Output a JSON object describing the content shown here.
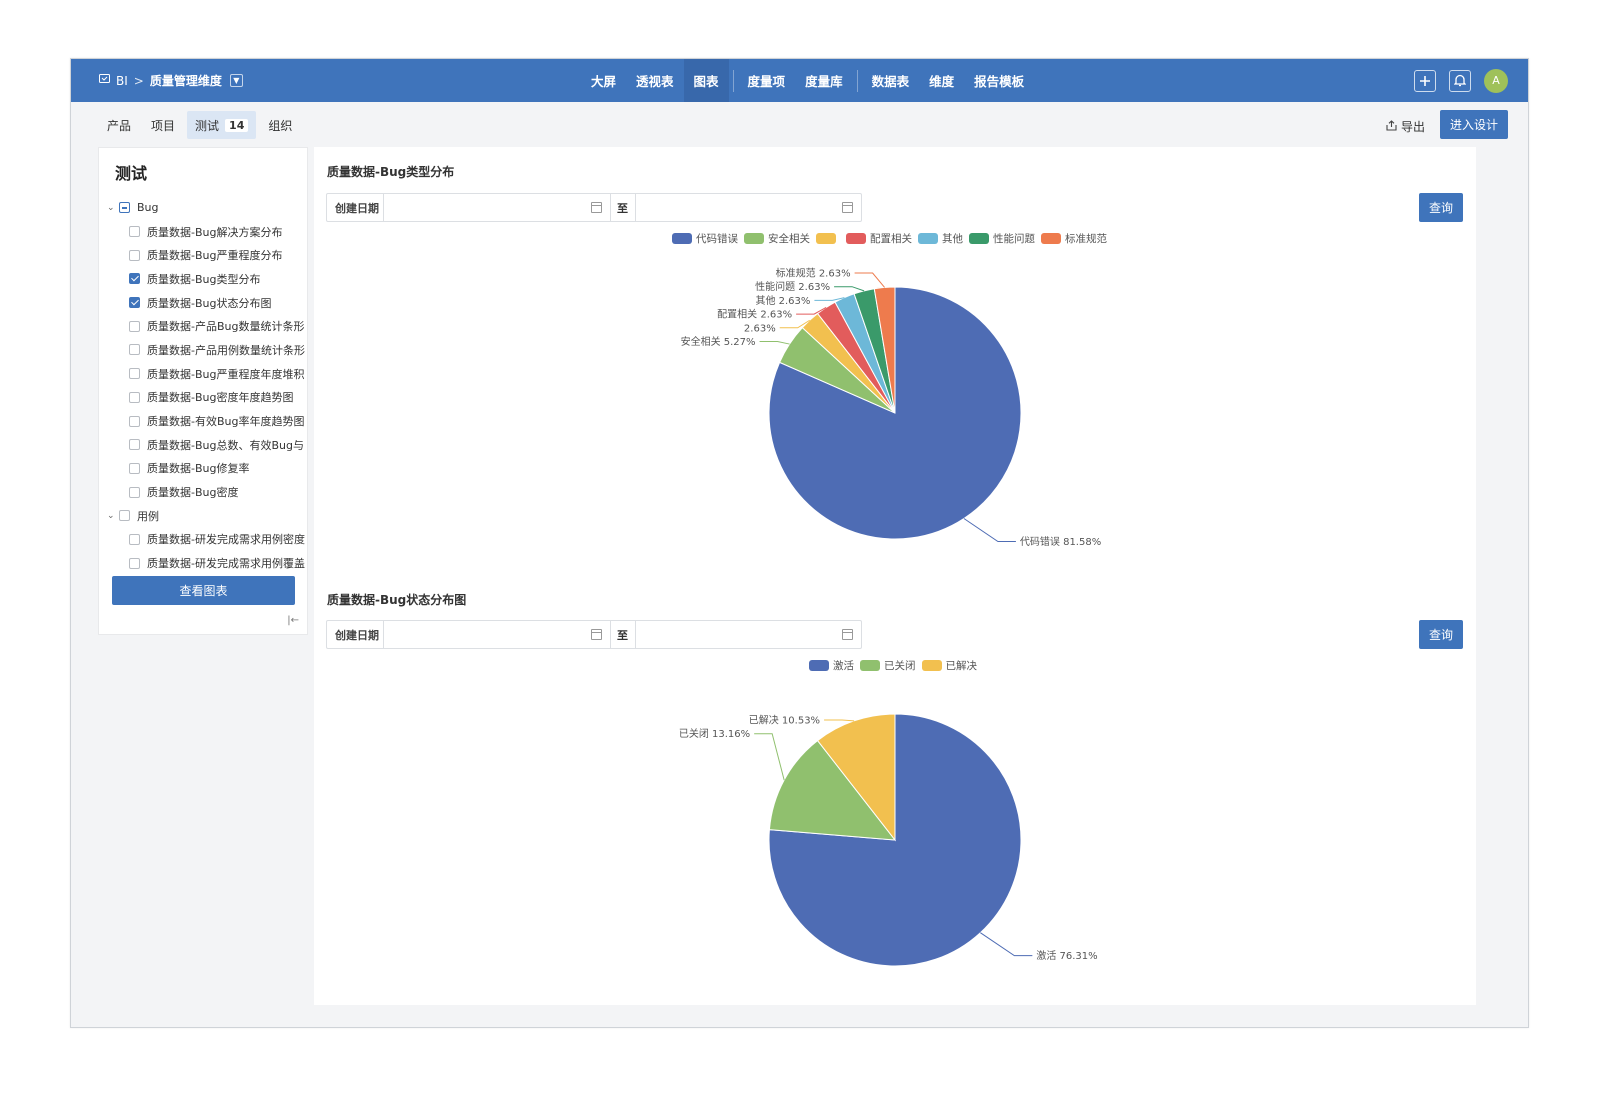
{
  "app": {
    "breadcrumb_root": "BI",
    "breadcrumb_sep": ">",
    "breadcrumb_current": "质量管理维度"
  },
  "nav": {
    "items": [
      "大屏",
      "透视表",
      "图表",
      "度量项",
      "度量库",
      "数据表",
      "维度",
      "报告模板"
    ],
    "active": "图表"
  },
  "avatar": "A",
  "subtabs": {
    "items": [
      "产品",
      "项目",
      "测试",
      "组织"
    ],
    "active": "测试",
    "badge": "14"
  },
  "actions": {
    "export_label": "导出",
    "design_label": "进入设计"
  },
  "sidebar": {
    "title": "测试",
    "groups": [
      {
        "label": "Bug",
        "state": "partial",
        "items": [
          {
            "label": "质量数据-Bug解决方案分布",
            "checked": false
          },
          {
            "label": "质量数据-Bug严重程度分布",
            "checked": false
          },
          {
            "label": "质量数据-Bug类型分布",
            "checked": true
          },
          {
            "label": "质量数据-Bug状态分布图",
            "checked": true
          },
          {
            "label": "质量数据-产品Bug数量统计条形",
            "checked": false
          },
          {
            "label": "质量数据-产品用例数量统计条形",
            "checked": false
          },
          {
            "label": "质量数据-Bug严重程度年度堆积",
            "checked": false
          },
          {
            "label": "质量数据-Bug密度年度趋势图",
            "checked": false
          },
          {
            "label": "质量数据-有效Bug率年度趋势图",
            "checked": false
          },
          {
            "label": "质量数据-Bug总数、有效Bug与",
            "checked": false
          },
          {
            "label": "质量数据-Bug修复率",
            "checked": false
          },
          {
            "label": "质量数据-Bug密度",
            "checked": false
          }
        ]
      },
      {
        "label": "用例",
        "state": "none",
        "items": [
          {
            "label": "质量数据-研发完成需求用例密度",
            "checked": false
          },
          {
            "label": "质量数据-研发完成需求用例覆盖",
            "checked": false
          }
        ]
      }
    ],
    "view_button": "查看图表"
  },
  "filters": {
    "date_label": "创建日期",
    "to_label": "至",
    "query_label": "查询"
  },
  "chart_data": [
    {
      "type": "pie",
      "title": "质量数据-Bug类型分布",
      "categories": [
        "代码错误",
        "安全相关",
        "",
        "配置相关",
        "其他",
        "性能问题",
        "标准规范"
      ],
      "legend_labels": [
        "代码错误",
        "安全相关",
        "",
        "配置相关",
        "其他",
        "性能问题",
        "标准规范"
      ],
      "values": [
        81.58,
        5.27,
        2.63,
        2.63,
        2.63,
        2.63,
        2.63
      ],
      "labels": [
        "代码错误 81.58%",
        "安全相关 5.27%",
        "2.63%",
        "配置相关 2.63%",
        "其他 2.63%",
        "性能问题 2.63%",
        "标准规范 2.63%"
      ],
      "colors": [
        "#4e6cb4",
        "#90c06e",
        "#f2c04f",
        "#e25c5c",
        "#6db8d8",
        "#3a9a6a",
        "#ee7b4d"
      ],
      "legend_placement": "top"
    },
    {
      "type": "pie",
      "title": "质量数据-Bug状态分布图",
      "categories": [
        "激活",
        "已关闭",
        "已解决"
      ],
      "legend_labels": [
        "激活",
        "已关闭",
        "已解决"
      ],
      "values": [
        76.31,
        13.16,
        10.53
      ],
      "labels": [
        "激活 76.31%",
        "已关闭 13.16%",
        "已解决 10.53%"
      ],
      "colors": [
        "#4e6cb4",
        "#90c06e",
        "#f2c04f"
      ],
      "legend_placement": "top"
    }
  ]
}
